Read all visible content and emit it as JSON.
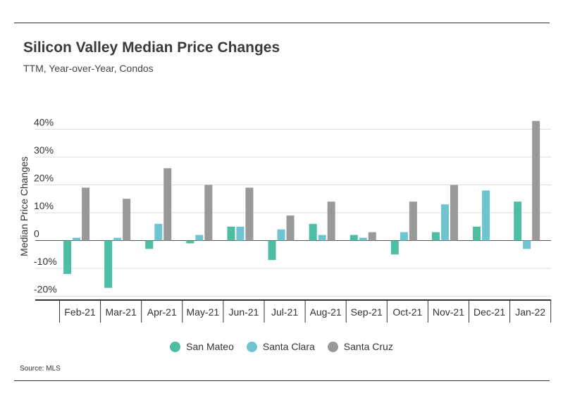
{
  "chart_data": {
    "type": "bar",
    "title": "Silicon Valley Median Price Changes",
    "subtitle": "TTM, Year-over-Year, Condos",
    "ylabel": "Median Price Changes",
    "xlabel": "",
    "ylim": [
      -20,
      40
    ],
    "yticks": [
      40,
      30,
      20,
      10,
      0,
      -10,
      -20
    ],
    "ytick_labels": [
      "40%",
      "30%",
      "20%",
      "10%",
      "0",
      "-10%",
      "-20%"
    ],
    "grid": true,
    "legend_position": "bottom",
    "categories": [
      "Feb-21",
      "Mar-21",
      "Apr-21",
      "May-21",
      "Jun-21",
      "Jul-21",
      "Aug-21",
      "Sep-21",
      "Oct-21",
      "Nov-21",
      "Dec-21",
      "Jan-22"
    ],
    "series": [
      {
        "name": "San Mateo",
        "color": "#4dbea3",
        "values": [
          -12,
          -17,
          -3,
          -1,
          5,
          -7,
          6,
          2,
          -5,
          3,
          5,
          14
        ]
      },
      {
        "name": "Santa Clara",
        "color": "#6ec5d0",
        "values": [
          1,
          1,
          6,
          2,
          5,
          4,
          2,
          1,
          3,
          13,
          18,
          -3
        ]
      },
      {
        "name": "Santa Cruz",
        "color": "#999999",
        "values": [
          19,
          15,
          26,
          20,
          19,
          9,
          14,
          3,
          14,
          20,
          0,
          43
        ]
      }
    ]
  },
  "footer": {
    "source": "Source:  MLS"
  }
}
